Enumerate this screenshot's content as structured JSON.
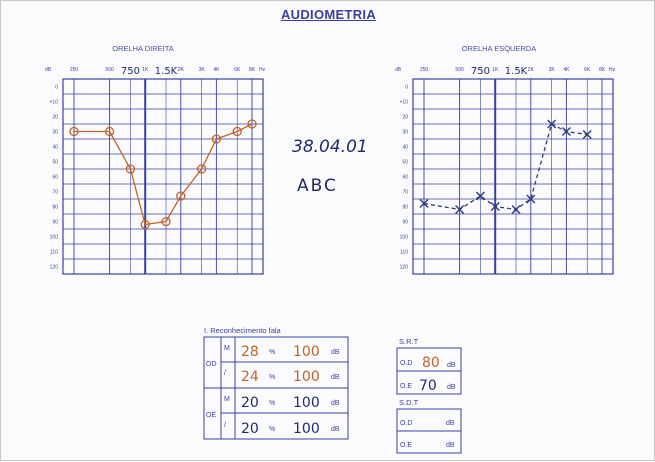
{
  "form": {
    "title": "AUDIOMETRIA",
    "right_ear_label": "ORELHA DIREITA",
    "left_ear_label": "ORELHA ESQUERDA",
    "db_label": "dB",
    "hz_label": "Hz",
    "freq_labels": [
      "250",
      "500",
      "1K",
      "2K",
      "3K",
      "4K",
      "6K",
      "8K"
    ],
    "level_labels": [
      "0",
      "+10",
      "20",
      "30",
      "40",
      "50",
      "60",
      "70",
      "80",
      "90",
      "100",
      "110",
      "120"
    ],
    "extra_freq_marks": [
      "750",
      "1.5K"
    ]
  },
  "handwriting": {
    "date": "38.04.01",
    "initials": "ABC"
  },
  "speech": {
    "title": "I. Reconhecimento fala",
    "od": "OD",
    "oe": "OE",
    "rows": [
      {
        "mark": "M",
        "value": "28",
        "pct": "%",
        "level": "100",
        "unit": "dB"
      },
      {
        "mark": "/",
        "value": "24",
        "pct": "%",
        "level": "100",
        "unit": "dB"
      },
      {
        "mark": "M",
        "value": "20",
        "pct": "%",
        "level": "100",
        "unit": "dB"
      },
      {
        "mark": "/",
        "value": "20",
        "pct": "%",
        "level": "100",
        "unit": "dB"
      }
    ]
  },
  "srt": {
    "title": "S.R.T",
    "od_label": "O.D",
    "od_value": "80",
    "oe_label": "O.E",
    "oe_value": "70",
    "unit": "dB"
  },
  "sdt": {
    "title": "S.D.T",
    "od_label": "O.D",
    "oe_label": "O.E",
    "unit": "dB"
  },
  "chart_data": [
    {
      "type": "line",
      "title": "ORELHA DIREITA",
      "xlabel": "Hz",
      "ylabel": "dB",
      "x_scale": "octave",
      "ylim": [
        -10,
        120
      ],
      "y_inverted": true,
      "symbol": "O (handwritten)",
      "series_color": "#c0622a",
      "points": [
        {
          "x": "250",
          "y": 20
        },
        {
          "x": "500",
          "y": 20
        },
        {
          "x": "750",
          "y": 45
        },
        {
          "x": "1K",
          "y": 82
        },
        {
          "x": "1.5K",
          "y": 80
        },
        {
          "x": "2K",
          "y": 63
        },
        {
          "x": "3K",
          "y": 45
        },
        {
          "x": "4K",
          "y": 25
        },
        {
          "x": "6K",
          "y": 20
        },
        {
          "x": "8K",
          "y": 15
        }
      ]
    },
    {
      "type": "line",
      "title": "ORELHA ESQUERDA",
      "xlabel": "Hz",
      "ylabel": "dB",
      "x_scale": "octave",
      "ylim": [
        -10,
        120
      ],
      "y_inverted": true,
      "symbol": "X (handwritten)",
      "series_color": "#2e3a7a",
      "points": [
        {
          "x": "250",
          "y": 68
        },
        {
          "x": "500",
          "y": 72
        },
        {
          "x": "750",
          "y": 63
        },
        {
          "x": "1K",
          "y": 70
        },
        {
          "x": "1.5K",
          "y": 72
        },
        {
          "x": "2K",
          "y": 65
        },
        {
          "x": "3K",
          "y": 15
        },
        {
          "x": "4K",
          "y": 20
        },
        {
          "x": "6K",
          "y": 22
        }
      ]
    }
  ]
}
